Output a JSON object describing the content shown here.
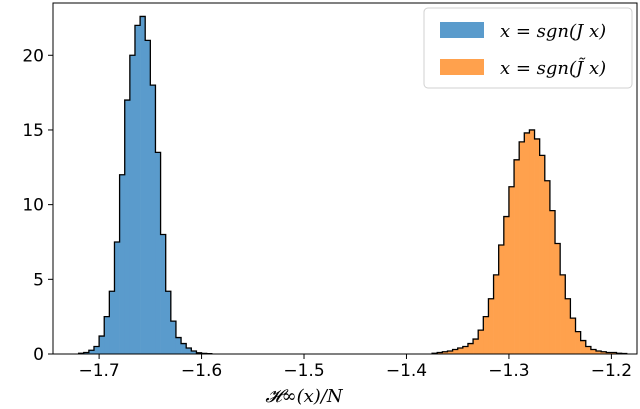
{
  "chart_data": {
    "type": "bar",
    "title": "",
    "xlabel": "𝓗∞(x)/N",
    "ylabel": "",
    "xlim": [
      -1.745,
      -1.175
    ],
    "ylim": [
      0,
      23.5
    ],
    "xticks": [
      -1.7,
      -1.6,
      -1.5,
      -1.4,
      -1.3,
      -1.2
    ],
    "xtick_labels": [
      "−1.7",
      "−1.6",
      "−1.5",
      "−1.4",
      "−1.3",
      "−1.2"
    ],
    "yticks": [
      0,
      5,
      10,
      15,
      20
    ],
    "ytick_labels": [
      "0",
      "5",
      "10",
      "15",
      "20"
    ],
    "grid": false,
    "legend_position": "top-right",
    "series": [
      {
        "name": "x = sgn(J x)",
        "color": "#5a9bcc",
        "bin_width": 0.005,
        "x": [
          -1.7175,
          -1.7125,
          -1.7075,
          -1.7025,
          -1.6975,
          -1.6925,
          -1.6875,
          -1.6825,
          -1.6775,
          -1.6725,
          -1.6675,
          -1.6625,
          -1.6575,
          -1.6525,
          -1.6475,
          -1.6425,
          -1.6375,
          -1.6325,
          -1.6275,
          -1.6225,
          -1.6175,
          -1.6125,
          -1.6075,
          -1.6025,
          -1.5975,
          -1.5925
        ],
        "values": [
          0.05,
          0.1,
          0.25,
          0.5,
          1.2,
          2.5,
          4.2,
          7.5,
          12.0,
          17.0,
          20.0,
          22.0,
          22.6,
          21.0,
          18.0,
          13.5,
          8.0,
          4.2,
          2.2,
          1.1,
          0.7,
          0.4,
          0.2,
          0.08,
          0.04,
          0.02
        ]
      },
      {
        "name": "x = sgn(J̃ x)",
        "color": "#ffa14d",
        "bin_width": 0.005,
        "x": [
          -1.3725,
          -1.3675,
          -1.3625,
          -1.3575,
          -1.3525,
          -1.3475,
          -1.3425,
          -1.3375,
          -1.3325,
          -1.3275,
          -1.3225,
          -1.3175,
          -1.3125,
          -1.3075,
          -1.3025,
          -1.2975,
          -1.2925,
          -1.2875,
          -1.2825,
          -1.2775,
          -1.2725,
          -1.2675,
          -1.2625,
          -1.2575,
          -1.2525,
          -1.2475,
          -1.2425,
          -1.2375,
          -1.2325,
          -1.2275,
          -1.2225,
          -1.2175,
          -1.2125,
          -1.2075,
          -1.2025,
          -1.1975,
          -1.1925,
          -1.1875
        ],
        "values": [
          0.05,
          0.1,
          0.15,
          0.2,
          0.3,
          0.4,
          0.5,
          0.7,
          1.0,
          1.6,
          2.5,
          3.7,
          5.3,
          7.3,
          9.2,
          11.2,
          13.0,
          14.2,
          14.8,
          15.0,
          14.4,
          13.3,
          11.6,
          9.6,
          7.4,
          5.3,
          3.7,
          2.4,
          1.5,
          0.9,
          0.5,
          0.3,
          0.2,
          0.15,
          0.1,
          0.1,
          0.05,
          0.03
        ]
      }
    ]
  }
}
